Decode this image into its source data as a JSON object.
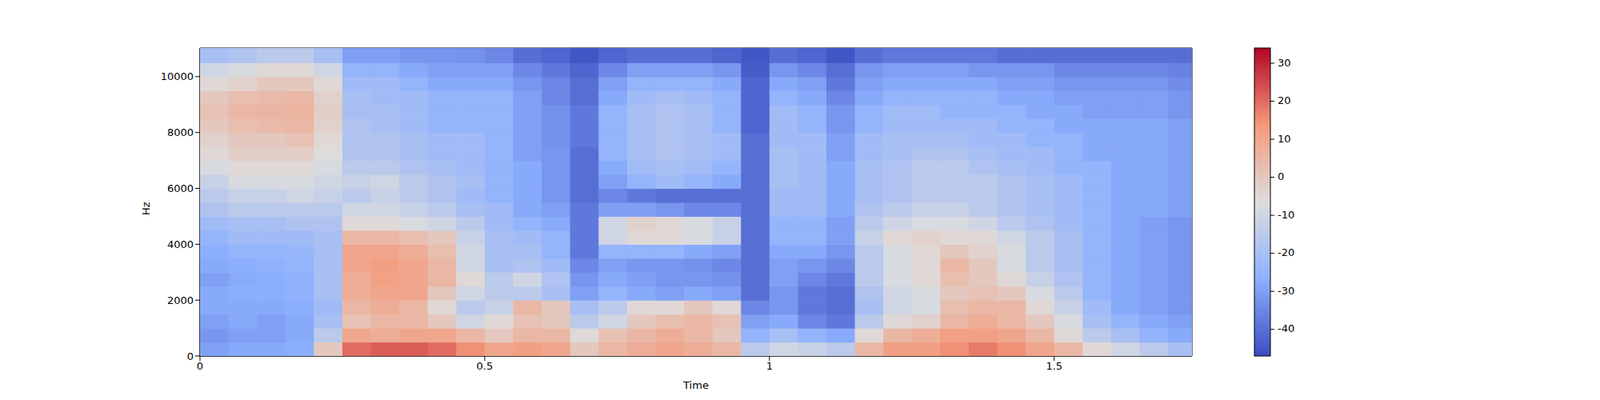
{
  "chart_data": {
    "type": "heatmap",
    "xlabel": "Time",
    "ylabel": "Hz",
    "xlim": [
      0,
      1.742
    ],
    "xticks": [
      0,
      0.5,
      1,
      1.5
    ],
    "ylim": [
      0,
      11025
    ],
    "yticks": [
      0,
      2000,
      4000,
      6000,
      8000,
      10000
    ],
    "x_edges": [
      0,
      0.05,
      0.1,
      0.15,
      0.2,
      0.25,
      0.3,
      0.35,
      0.4,
      0.45,
      0.5,
      0.55,
      0.6,
      0.65,
      0.7,
      0.75,
      0.8,
      0.85,
      0.9,
      0.95,
      1.0,
      1.05,
      1.1,
      1.15,
      1.2,
      1.25,
      1.3,
      1.35,
      1.4,
      1.45,
      1.5,
      1.55,
      1.6,
      1.65,
      1.7,
      1.742
    ],
    "y_edges": [
      0,
      500,
      1000,
      1500,
      2000,
      2500,
      3000,
      3500,
      4000,
      4500,
      5000,
      5500,
      6000,
      6500,
      7000,
      7500,
      8000,
      8500,
      9000,
      9500,
      10000,
      10500,
      11025
    ],
    "values": [
      [
        -30,
        -32,
        -30,
        -28,
        -28,
        -30,
        -28,
        -27,
        -25,
        -22,
        -18,
        -15,
        -12,
        -8,
        -5,
        -3,
        0,
        2,
        0,
        -5,
        -10,
        -20
      ],
      [
        -28,
        -30,
        -28,
        -28,
        -27,
        -28,
        -27,
        -25,
        -22,
        -20,
        -15,
        -12,
        -8,
        -5,
        -2,
        0,
        3,
        5,
        3,
        -3,
        -8,
        -18
      ],
      [
        -28,
        -30,
        -30,
        -28,
        -27,
        -27,
        -26,
        -25,
        -22,
        -20,
        -15,
        -12,
        -8,
        -5,
        -2,
        0,
        4,
        6,
        4,
        0,
        -5,
        -15
      ],
      [
        -27,
        -28,
        -28,
        -27,
        -26,
        -26,
        -25,
        -24,
        -22,
        -18,
        -15,
        -10,
        -8,
        -5,
        -2,
        2,
        5,
        6,
        5,
        0,
        -5,
        -15
      ],
      [
        0,
        -15,
        -20,
        -22,
        -20,
        -20,
        -20,
        -20,
        -20,
        -18,
        -15,
        -12,
        -10,
        -8,
        -6,
        -5,
        -3,
        -2,
        -3,
        -5,
        -10,
        -20
      ],
      [
        20,
        10,
        2,
        5,
        8,
        8,
        10,
        10,
        5,
        -5,
        -10,
        -15,
        -12,
        -15,
        -18,
        -18,
        -18,
        -20,
        -20,
        -22,
        -25,
        -30
      ],
      [
        22,
        8,
        5,
        8,
        10,
        12,
        12,
        10,
        5,
        -5,
        -10,
        -12,
        -10,
        -15,
        -18,
        -18,
        -20,
        -20,
        -22,
        -22,
        -25,
        -30
      ],
      [
        22,
        10,
        5,
        5,
        10,
        10,
        10,
        8,
        3,
        -8,
        -12,
        -15,
        -15,
        -18,
        -20,
        -20,
        -22,
        -22,
        -22,
        -25,
        -28,
        -32
      ],
      [
        20,
        10,
        0,
        -5,
        0,
        5,
        5,
        3,
        0,
        -10,
        -15,
        -18,
        -18,
        -20,
        -22,
        -22,
        -25,
        -25,
        -25,
        -28,
        -30,
        -32
      ],
      [
        15,
        5,
        -10,
        -15,
        -10,
        -5,
        -10,
        -10,
        -12,
        -15,
        -20,
        -22,
        -20,
        -22,
        -22,
        -22,
        -25,
        -25,
        -25,
        -28,
        -30,
        -33
      ],
      [
        10,
        0,
        -5,
        -12,
        -15,
        -15,
        -20,
        -20,
        -20,
        -22,
        -22,
        -25,
        -25,
        -25,
        -25,
        -25,
        -25,
        -25,
        -25,
        -28,
        -30,
        -35
      ],
      [
        12,
        5,
        2,
        5,
        -15,
        -10,
        -18,
        -20,
        -22,
        -25,
        -28,
        -28,
        -28,
        -28,
        -30,
        -30,
        -30,
        -30,
        -30,
        -32,
        -35,
        -40
      ],
      [
        10,
        5,
        0,
        0,
        -20,
        -18,
        -22,
        -25,
        -25,
        -28,
        -30,
        -32,
        -32,
        -32,
        -32,
        -33,
        -33,
        -33,
        -35,
        -35,
        -38,
        -42
      ],
      [
        0,
        -5,
        -15,
        -20,
        -30,
        -32,
        -35,
        -38,
        -38,
        -38,
        -38,
        -40,
        -40,
        -40,
        -40,
        -38,
        -38,
        -38,
        -40,
        -40,
        -42,
        -45
      ],
      [
        5,
        2,
        -10,
        -15,
        -25,
        -28,
        -30,
        -25,
        -10,
        -10,
        -30,
        -35,
        -30,
        -28,
        -25,
        -25,
        -25,
        -25,
        -28,
        -30,
        -35,
        -42
      ],
      [
        8,
        5,
        0,
        -5,
        -28,
        -30,
        -32,
        -25,
        -5,
        -3,
        -30,
        -38,
        -25,
        -22,
        -20,
        -20,
        -20,
        -20,
        -22,
        -25,
        -30,
        -40
      ],
      [
        10,
        8,
        3,
        -5,
        -30,
        -32,
        -32,
        -25,
        -5,
        -5,
        -32,
        -40,
        -22,
        -20,
        -18,
        -18,
        -18,
        -18,
        -20,
        -25,
        -30,
        -40
      ],
      [
        8,
        5,
        5,
        0,
        -28,
        -32,
        -33,
        -28,
        -8,
        -8,
        -35,
        -40,
        -25,
        -22,
        -20,
        -20,
        -20,
        -20,
        -22,
        -25,
        -30,
        -40
      ],
      [
        5,
        0,
        2,
        -5,
        -30,
        -33,
        -35,
        -30,
        -12,
        -12,
        -35,
        -40,
        -28,
        -25,
        -22,
        -22,
        -25,
        -25,
        -25,
        -28,
        -32,
        -42
      ],
      [
        -15,
        -25,
        -30,
        -35,
        -40,
        -40,
        -40,
        -40,
        -40,
        -40,
        -40,
        -40,
        -40,
        -40,
        -40,
        -40,
        -42,
        -42,
        -42,
        -42,
        -44,
        -45
      ],
      [
        -10,
        -20,
        -28,
        -32,
        -32,
        -30,
        -30,
        -28,
        -25,
        -25,
        -22,
        -22,
        -20,
        -20,
        -20,
        -22,
        -22,
        -22,
        -25,
        -28,
        -32,
        -40
      ],
      [
        -12,
        -25,
        -35,
        -38,
        -38,
        -35,
        -32,
        -28,
        -25,
        -25,
        -22,
        -22,
        -22,
        -22,
        -22,
        -22,
        -25,
        -25,
        -28,
        -30,
        -35,
        -42
      ],
      [
        -15,
        -28,
        -38,
        -40,
        -40,
        -38,
        -35,
        -32,
        -30,
        -30,
        -28,
        -28,
        -28,
        -28,
        -30,
        -30,
        -32,
        -32,
        -35,
        -38,
        -40,
        -45
      ],
      [
        5,
        -5,
        -15,
        -20,
        -18,
        -15,
        -15,
        -15,
        -12,
        -15,
        -18,
        -20,
        -20,
        -20,
        -22,
        -22,
        -25,
        -25,
        -28,
        -30,
        -32,
        -40
      ],
      [
        12,
        5,
        -5,
        -10,
        -10,
        -8,
        -8,
        -8,
        -5,
        -10,
        -15,
        -18,
        -18,
        -18,
        -20,
        -20,
        -22,
        -22,
        -25,
        -28,
        -30,
        -38
      ],
      [
        12,
        8,
        -3,
        -8,
        -8,
        -5,
        -5,
        -5,
        -3,
        -8,
        -12,
        -15,
        -15,
        -15,
        -18,
        -20,
        -22,
        -22,
        -25,
        -28,
        -30,
        -38
      ],
      [
        15,
        12,
        5,
        3,
        0,
        3,
        5,
        0,
        -5,
        -8,
        -12,
        -15,
        -15,
        -15,
        -18,
        -20,
        -22,
        -25,
        -25,
        -28,
        -30,
        -38
      ],
      [
        18,
        12,
        8,
        5,
        2,
        0,
        0,
        -3,
        -5,
        -10,
        -15,
        -15,
        -15,
        -18,
        -20,
        -22,
        -22,
        -25,
        -25,
        -28,
        -32,
        -38
      ],
      [
        15,
        10,
        5,
        5,
        0,
        -5,
        -8,
        -8,
        -10,
        -15,
        -18,
        -18,
        -18,
        -20,
        -22,
        -22,
        -25,
        -25,
        -28,
        -30,
        -32,
        -40
      ],
      [
        10,
        5,
        0,
        -5,
        -8,
        -12,
        -15,
        -15,
        -15,
        -18,
        -20,
        -20,
        -20,
        -22,
        -22,
        -25,
        -25,
        -28,
        -28,
        -30,
        -32,
        -40
      ],
      [
        5,
        -5,
        -8,
        -12,
        -15,
        -18,
        -20,
        -20,
        -20,
        -22,
        -22,
        -22,
        -22,
        -25,
        -25,
        -25,
        -28,
        -28,
        -30,
        -32,
        -35,
        -40
      ],
      [
        -5,
        -15,
        -20,
        -22,
        -25,
        -25,
        -25,
        -25,
        -25,
        -25,
        -25,
        -25,
        -25,
        -25,
        -28,
        -28,
        -28,
        -30,
        -30,
        -32,
        -35,
        -40
      ],
      [
        -10,
        -20,
        -25,
        -28,
        -28,
        -28,
        -28,
        -28,
        -28,
        -28,
        -28,
        -28,
        -28,
        -28,
        -28,
        -28,
        -28,
        -30,
        -30,
        -32,
        -35,
        -40
      ],
      [
        -15,
        -25,
        -28,
        -30,
        -30,
        -30,
        -30,
        -30,
        -30,
        -30,
        -28,
        -28,
        -28,
        -28,
        -28,
        -28,
        -28,
        -30,
        -30,
        -32,
        -35,
        -40
      ],
      [
        -20,
        -28,
        -30,
        -32,
        -32,
        -32,
        -32,
        -32,
        -32,
        -32,
        -30,
        -30,
        -30,
        -30,
        -30,
        -30,
        -30,
        -32,
        -32,
        -34,
        -36,
        -40
      ]
    ],
    "colorbar": {
      "range": [
        -47,
        34
      ],
      "ticks": [
        -40,
        -30,
        -20,
        -10,
        0,
        10,
        20,
        30
      ]
    }
  }
}
